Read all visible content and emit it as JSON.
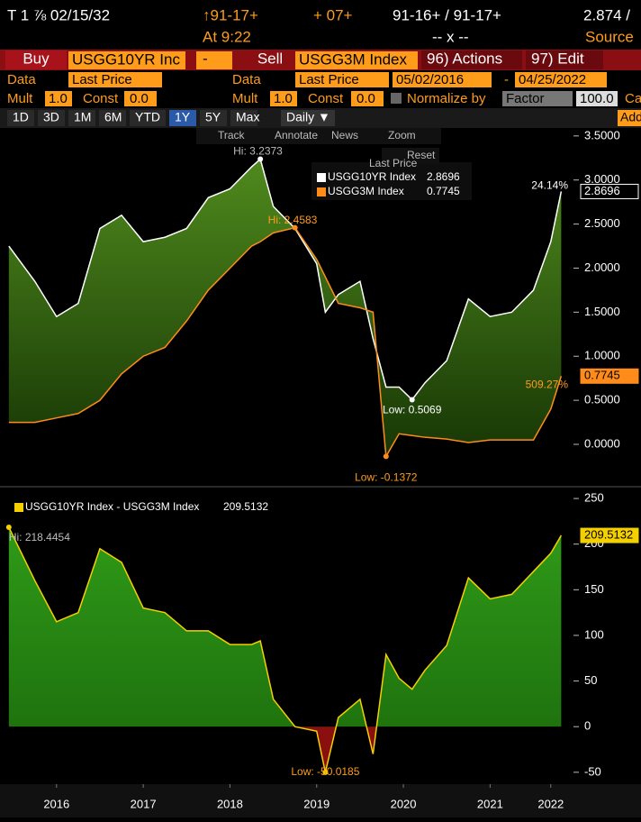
{
  "header": {
    "security": "T 1 ⅞ 02/15/32",
    "last": "↑91-17+",
    "net": "+ 07+",
    "bid_ask": "91-16+ / 91-17+",
    "yield": "2.874 /",
    "time": "At 9:22",
    "size": "-- x --",
    "source": "Source"
  },
  "toolbar": {
    "buy": "Buy",
    "ticker1": "USGG10YR Inc",
    "minus": "-",
    "sell": "Sell",
    "ticker2": "USGG3M Index",
    "actions": "96) Actions",
    "edit": "97) Edit"
  },
  "data_row": {
    "data1": "Data",
    "field1": "Last Price",
    "data2": "Data",
    "field2": "Last Price",
    "start": "05/02/2016",
    "dash": "-",
    "end": "04/25/2022"
  },
  "mult_row": {
    "mult1": "Mult",
    "mult1_value": "1.0",
    "const1": "Const",
    "const1_value": "0.0",
    "mult2": "Mult",
    "mult2_value": "1.0",
    "const2": "Const",
    "const2_value": "0.0",
    "normalize": "Normalize by",
    "factor": "Factor",
    "factor_value": "100.0",
    "cut": "Ca"
  },
  "periods": [
    "1D",
    "3D",
    "1M",
    "6M",
    "YTD",
    "1Y",
    "5Y",
    "Max"
  ],
  "frequency": "Daily ▼",
  "add": "Add",
  "chart_tools": [
    "Track",
    "Annotate",
    "News",
    "Zoom"
  ],
  "reset": "Reset",
  "legend_title": "Last Price",
  "chart_data": [
    {
      "type": "line",
      "xlim": [
        2015.9,
        2022.42
      ],
      "ylim": [
        -0.45,
        3.58
      ],
      "yticks": [
        {
          "value": 3.5,
          "label": "3.5000"
        },
        {
          "value": 3,
          "label": "3.0000"
        },
        {
          "value": 2.5,
          "label": "2.5000"
        },
        {
          "value": 2,
          "label": "2.0000"
        },
        {
          "value": 1.5,
          "label": "1.5000"
        },
        {
          "value": 1,
          "label": "1.0000"
        },
        {
          "value": 0.5,
          "label": "0.5000"
        },
        {
          "value": 0,
          "label": "0.0000"
        }
      ],
      "x": [
        2015.95,
        2016.25,
        2016.5,
        2016.75,
        2017.0,
        2017.25,
        2017.5,
        2017.75,
        2018.0,
        2018.25,
        2018.5,
        2018.75,
        2018.85,
        2019.0,
        2019.25,
        2019.5,
        2019.6,
        2019.75,
        2020.0,
        2020.15,
        2020.3,
        2020.45,
        2020.6,
        2020.75,
        2021.0,
        2021.25,
        2021.5,
        2021.75,
        2022.0,
        2022.2,
        2022.32
      ],
      "series": [
        {
          "name": "USGG10YR Index",
          "color": "#ffffff",
          "values": [
            2.25,
            1.85,
            1.45,
            1.6,
            2.45,
            2.6,
            2.3,
            2.35,
            2.45,
            2.8,
            2.9,
            3.15,
            3.2373,
            2.7,
            2.45,
            2.05,
            1.5,
            1.7,
            1.85,
            1.2,
            0.65,
            0.65,
            0.5069,
            0.7,
            0.95,
            1.65,
            1.45,
            1.5,
            1.75,
            2.3,
            2.8696
          ],
          "hi_label": "Hi: 3.2373",
          "low_label": "Low: 0.5069",
          "change_label": "24.14%"
        },
        {
          "name": "USGG3M Index",
          "color": "#ff8c1a",
          "values": [
            0.25,
            0.25,
            0.3,
            0.35,
            0.5,
            0.8,
            1.0,
            1.1,
            1.4,
            1.75,
            2.0,
            2.25,
            2.3,
            2.4,
            2.4583,
            2.1,
            1.9,
            1.6,
            1.55,
            1.5,
            -0.1372,
            0.12,
            0.1,
            0.08,
            0.06,
            0.02,
            0.05,
            0.05,
            0.05,
            0.4,
            0.7745
          ],
          "hi_label": "Hi: 2.4583",
          "low_label": "Low: -0.1372",
          "change_label": "509.27%"
        }
      ]
    },
    {
      "type": "area",
      "xlim": [
        2015.9,
        2022.42
      ],
      "ylim": [
        -63,
        255
      ],
      "yticks": [
        250,
        200,
        150,
        100,
        50,
        0,
        -50
      ],
      "xticks": [
        {
          "value": 2016.5,
          "label": "2016"
        },
        {
          "value": 2017.5,
          "label": "2017"
        },
        {
          "value": 2018.5,
          "label": "2018"
        },
        {
          "value": 2019.5,
          "label": "2019"
        },
        {
          "value": 2020.5,
          "label": "2020"
        },
        {
          "value": 2021.5,
          "label": "2021"
        },
        {
          "value": 2022.2,
          "label": "2022"
        }
      ],
      "x": [
        2015.95,
        2016.25,
        2016.5,
        2016.75,
        2017.0,
        2017.25,
        2017.5,
        2017.75,
        2018.0,
        2018.25,
        2018.5,
        2018.75,
        2018.85,
        2019.0,
        2019.25,
        2019.5,
        2019.6,
        2019.75,
        2020.0,
        2020.15,
        2020.3,
        2020.45,
        2020.6,
        2020.75,
        2021.0,
        2021.25,
        2021.5,
        2021.75,
        2022.0,
        2022.2,
        2022.32
      ],
      "series": [
        {
          "name": "USGG10YR Index - USGG3M Index",
          "color": "#f5d000",
          "values": [
            218.4454,
            160,
            115,
            125,
            195,
            180,
            130,
            125,
            105,
            105,
            90,
            90,
            94,
            30,
            0,
            -5,
            -50.0185,
            10,
            30,
            -30,
            79,
            53,
            41,
            62,
            89,
            163,
            140,
            145,
            170,
            190,
            209.5132
          ],
          "hi_label": "Hi: 218.4454",
          "low_label": "Low: -50.0185"
        }
      ]
    }
  ]
}
